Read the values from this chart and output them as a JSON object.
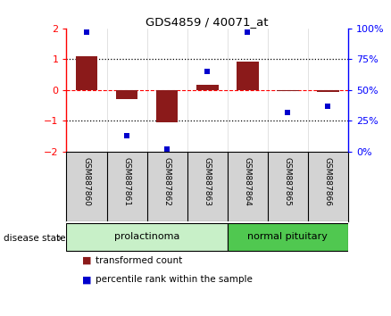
{
  "title": "GDS4859 / 40071_at",
  "samples": [
    "GSM887860",
    "GSM887861",
    "GSM887862",
    "GSM887863",
    "GSM887864",
    "GSM887865",
    "GSM887866"
  ],
  "transformed_count": [
    1.1,
    -0.3,
    -1.05,
    0.17,
    0.92,
    -0.03,
    -0.05
  ],
  "percentile_rank": [
    97,
    13,
    2,
    65,
    97,
    32,
    37
  ],
  "ylim_left": [
    -2,
    2
  ],
  "ylim_right": [
    0,
    100
  ],
  "yticks_left": [
    -2,
    -1,
    0,
    1,
    2
  ],
  "yticks_right": [
    0,
    25,
    50,
    75,
    100
  ],
  "ytick_labels_right": [
    "0%",
    "25%",
    "50%",
    "75%",
    "100%"
  ],
  "groups": [
    {
      "label": "prolactinoma",
      "samples": [
        0,
        1,
        2,
        3
      ],
      "color_light": "#c8f0c8",
      "color_dark": "#50c850"
    },
    {
      "label": "normal pituitary",
      "samples": [
        4,
        5,
        6
      ],
      "color_light": "#50c850",
      "color_dark": "#50c850"
    }
  ],
  "bar_color": "#8B1A1A",
  "dot_color": "#0000CD",
  "group_label": "disease state",
  "legend_bar": "transformed count",
  "legend_dot": "percentile rank within the sample",
  "background_color": "#ffffff",
  "header_bg": "#d3d3d3",
  "arrow_color": "#888888"
}
